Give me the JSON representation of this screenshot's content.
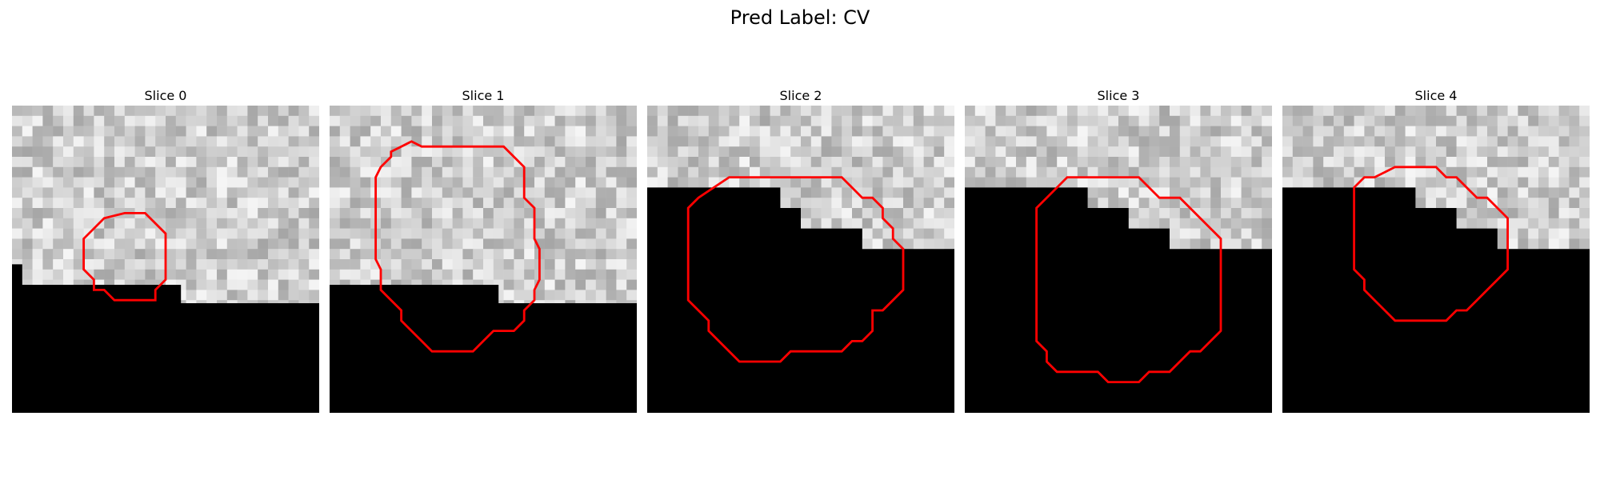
{
  "figure": {
    "title": "Pred Label: CV"
  },
  "panels": [
    {
      "title": "Slice 0",
      "mask_start_row": 18,
      "mask_start_row_left": 16,
      "mask_step_col": 99,
      "contour": [
        [
          11,
          10.5
        ],
        [
          13,
          10.5
        ],
        [
          15,
          12.5
        ],
        [
          15,
          17
        ],
        [
          14,
          18
        ],
        [
          14,
          19
        ],
        [
          10,
          19
        ],
        [
          9,
          18
        ],
        [
          8,
          18
        ],
        [
          8,
          17
        ],
        [
          7,
          16
        ],
        [
          7,
          13
        ],
        [
          9,
          11
        ]
      ],
      "seed": 11
    },
    {
      "title": "Slice 1",
      "mask_start_row": 18,
      "mask_start_row_left": 18,
      "mask_step_col": 99,
      "step": [
        [
          0,
          18
        ],
        [
          17,
          18
        ],
        [
          17,
          20
        ],
        [
          30,
          20
        ]
      ],
      "contour": [
        [
          9,
          4
        ],
        [
          17,
          4
        ],
        [
          19,
          6
        ],
        [
          19,
          9
        ],
        [
          20,
          10
        ],
        [
          20,
          13
        ],
        [
          20.5,
          14
        ],
        [
          20.5,
          17
        ],
        [
          20,
          18
        ],
        [
          20,
          19
        ],
        [
          19,
          20
        ],
        [
          19,
          21
        ],
        [
          18,
          22
        ],
        [
          16,
          22
        ],
        [
          15,
          23
        ],
        [
          14,
          24
        ],
        [
          10,
          24
        ],
        [
          9,
          23
        ],
        [
          8,
          22
        ],
        [
          7,
          21
        ],
        [
          7,
          20
        ],
        [
          6,
          19
        ],
        [
          5,
          18
        ],
        [
          5,
          16
        ],
        [
          4.5,
          15
        ],
        [
          4.5,
          7
        ],
        [
          5,
          6
        ],
        [
          6,
          5
        ],
        [
          6,
          4.5
        ],
        [
          7,
          4
        ],
        [
          8,
          3.5
        ]
      ],
      "seed": 23
    },
    {
      "title": "Slice 2",
      "mask_steps": [
        [
          0,
          8
        ],
        [
          13,
          8
        ],
        [
          13,
          10
        ],
        [
          15,
          10
        ],
        [
          15,
          12
        ],
        [
          21,
          12
        ],
        [
          21,
          14
        ],
        [
          30,
          14
        ]
      ],
      "contour": [
        [
          8,
          7
        ],
        [
          19,
          7
        ],
        [
          20,
          8
        ],
        [
          21,
          9
        ],
        [
          22,
          9
        ],
        [
          23,
          10
        ],
        [
          23,
          11
        ],
        [
          24,
          12
        ],
        [
          24,
          13
        ],
        [
          25,
          14
        ],
        [
          25,
          18
        ],
        [
          24,
          19
        ],
        [
          23,
          20
        ],
        [
          22,
          20
        ],
        [
          22,
          22
        ],
        [
          21,
          23
        ],
        [
          20,
          23
        ],
        [
          19,
          24
        ],
        [
          14,
          24
        ],
        [
          13,
          25
        ],
        [
          9,
          25
        ],
        [
          7,
          23
        ],
        [
          6,
          22
        ],
        [
          6,
          21
        ],
        [
          5,
          20
        ],
        [
          4,
          19
        ],
        [
          4,
          10
        ],
        [
          5,
          9
        ]
      ],
      "seed": 37
    },
    {
      "title": "Slice 3",
      "mask_steps": [
        [
          0,
          8
        ],
        [
          12,
          8
        ],
        [
          12,
          10
        ],
        [
          16,
          10
        ],
        [
          16,
          12
        ],
        [
          20,
          12
        ],
        [
          20,
          14
        ],
        [
          30,
          14
        ]
      ],
      "contour": [
        [
          10,
          7
        ],
        [
          17,
          7
        ],
        [
          19,
          9
        ],
        [
          21,
          9
        ],
        [
          22,
          10
        ],
        [
          24,
          12
        ],
        [
          25,
          13
        ],
        [
          25,
          22
        ],
        [
          24,
          23
        ],
        [
          23,
          24
        ],
        [
          22,
          24
        ],
        [
          21,
          25
        ],
        [
          20,
          26
        ],
        [
          18,
          26
        ],
        [
          17,
          27
        ],
        [
          14,
          27
        ],
        [
          13,
          26
        ],
        [
          9,
          26
        ],
        [
          8,
          25
        ],
        [
          8,
          24
        ],
        [
          7,
          23
        ],
        [
          7,
          10
        ],
        [
          8,
          9
        ]
      ],
      "seed": 41
    },
    {
      "title": "Slice 4",
      "mask_steps": [
        [
          0,
          8
        ],
        [
          13,
          8
        ],
        [
          13,
          10
        ],
        [
          17,
          10
        ],
        [
          17,
          12
        ],
        [
          21,
          12
        ],
        [
          21,
          14
        ],
        [
          30,
          14
        ]
      ],
      "contour": [
        [
          11,
          6
        ],
        [
          15,
          6
        ],
        [
          16,
          7
        ],
        [
          17,
          7
        ],
        [
          19,
          9
        ],
        [
          20,
          9
        ],
        [
          21,
          10
        ],
        [
          22,
          11
        ],
        [
          22,
          16
        ],
        [
          21,
          17
        ],
        [
          20,
          18
        ],
        [
          19,
          19
        ],
        [
          18,
          20
        ],
        [
          17,
          20
        ],
        [
          16,
          21
        ],
        [
          11,
          21
        ],
        [
          10,
          20
        ],
        [
          9,
          19
        ],
        [
          8,
          18
        ],
        [
          8,
          17
        ],
        [
          7,
          16
        ],
        [
          7,
          8
        ],
        [
          8,
          7
        ],
        [
          9,
          7
        ],
        [
          10,
          6.5
        ]
      ],
      "seed": 53
    }
  ]
}
